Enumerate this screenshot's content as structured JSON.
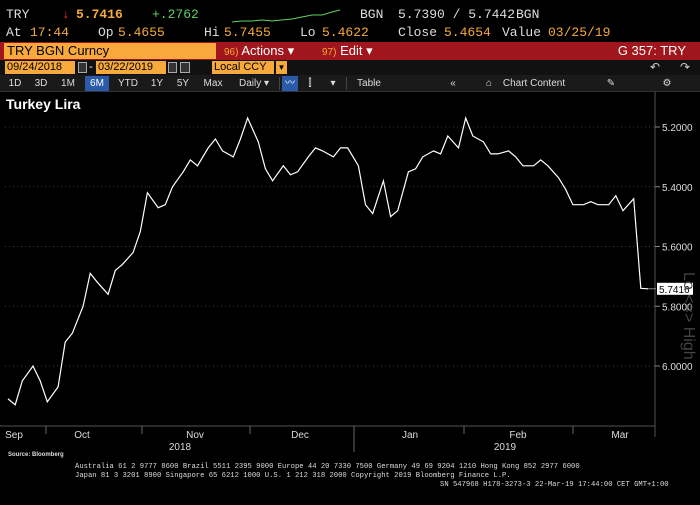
{
  "ticker": {
    "symbol": "TRY",
    "change_arrow": "↓",
    "last": "5.7416",
    "change": "+.2762",
    "source": "BGN",
    "bid_ask": "5.7390 / 5.7442",
    "source2": "BGN",
    "at_label": "At",
    "at_time": "17:44",
    "op_label": "Op",
    "op_value": "5.4655",
    "hi_label": "Hi",
    "hi_value": "5.7455",
    "lo_label": "Lo",
    "lo_value": "5.4622",
    "close_label": "Close",
    "close_value": "5.4654",
    "value_label": "Value",
    "value_date": "03/25/19"
  },
  "titlebar": {
    "security": "TRY BGN Curncy",
    "actions_num": "96)",
    "actions_label": "Actions ▾",
    "edit_num": "97)",
    "edit_label": "Edit ▾",
    "function_label": "G 357: TRY"
  },
  "daterow": {
    "start_date": "09/24/2018",
    "end_date": "03/22/2019",
    "currency": "Local CCY"
  },
  "toolbar": {
    "periods": [
      "1D",
      "3D",
      "1M",
      "6M",
      "YTD",
      "1Y",
      "5Y",
      "Max"
    ],
    "active_period": "6M",
    "frequency": "Daily ▾",
    "table_label": "Table",
    "chart_content_label": "Chart Content"
  },
  "chart_data": {
    "type": "line",
    "title": "Turkey Lira",
    "y_axis": {
      "ticks": [
        "5.2000",
        "5.4000",
        "5.6000",
        "5.8000",
        "6.0000"
      ],
      "min": 5.15,
      "max": 6.16,
      "inverted": true
    },
    "last_value_label": "5.7416",
    "x_months": [
      "Sep",
      "Oct",
      "Nov",
      "Dec",
      "Jan",
      "Feb",
      "Mar"
    ],
    "x_years": [
      "2018",
      "2019"
    ],
    "series": [
      {
        "x": [
          "2018-09-24",
          "2018-09-26",
          "2018-09-28",
          "2018-10-01",
          "2018-10-03",
          "2018-10-05",
          "2018-10-08",
          "2018-10-10",
          "2018-10-12",
          "2018-10-15",
          "2018-10-17",
          "2018-10-19",
          "2018-10-22",
          "2018-10-24",
          "2018-10-26",
          "2018-10-29",
          "2018-10-31",
          "2018-11-02",
          "2018-11-05",
          "2018-11-07",
          "2018-11-09",
          "2018-11-12",
          "2018-11-14",
          "2018-11-16",
          "2018-11-19",
          "2018-11-21",
          "2018-11-23",
          "2018-11-26",
          "2018-11-28",
          "2018-11-30",
          "2018-12-03",
          "2018-12-05",
          "2018-12-07",
          "2018-12-10",
          "2018-12-12",
          "2018-12-14",
          "2018-12-17",
          "2018-12-19",
          "2018-12-21",
          "2018-12-24",
          "2018-12-26",
          "2018-12-28",
          "2018-12-31",
          "2019-01-02",
          "2019-01-04",
          "2019-01-07",
          "2019-01-09",
          "2019-01-11",
          "2019-01-14",
          "2019-01-16",
          "2019-01-18",
          "2019-01-21",
          "2019-01-23",
          "2019-01-25",
          "2019-01-28",
          "2019-01-30",
          "2019-02-01",
          "2019-02-04",
          "2019-02-06",
          "2019-02-08",
          "2019-02-11",
          "2019-02-13",
          "2019-02-15",
          "2019-02-18",
          "2019-02-20",
          "2019-02-22",
          "2019-02-25",
          "2019-02-27",
          "2019-03-01",
          "2019-03-04",
          "2019-03-06",
          "2019-03-08",
          "2019-03-11",
          "2019-03-13",
          "2019-03-15",
          "2019-03-18",
          "2019-03-20",
          "2019-03-22"
        ],
        "values": [
          6.11,
          6.13,
          6.05,
          6.0,
          6.05,
          6.12,
          6.07,
          5.92,
          5.89,
          5.8,
          5.69,
          5.72,
          5.76,
          5.68,
          5.66,
          5.62,
          5.55,
          5.42,
          5.47,
          5.46,
          5.4,
          5.35,
          5.31,
          5.33,
          5.27,
          5.24,
          5.28,
          5.3,
          5.24,
          5.17,
          5.25,
          5.34,
          5.38,
          5.33,
          5.36,
          5.35,
          5.3,
          5.27,
          5.28,
          5.3,
          5.27,
          5.27,
          5.33,
          5.46,
          5.49,
          5.38,
          5.5,
          5.48,
          5.35,
          5.34,
          5.3,
          5.28,
          5.29,
          5.23,
          5.27,
          5.17,
          5.23,
          5.25,
          5.29,
          5.29,
          5.28,
          5.3,
          5.33,
          5.33,
          5.31,
          5.33,
          5.37,
          5.41,
          5.46,
          5.46,
          5.45,
          5.46,
          5.46,
          5.43,
          5.48,
          5.44,
          5.74,
          5.7416
        ]
      }
    ]
  },
  "footer": {
    "source": "Source: Bloomberg",
    "line1": "Australia 61 2 9777 8600 Brazil 5511 2395 9000 Europe 44 20 7330 7500 Germany 49 69 9204 1210 Hong Kong 852 2977 6000",
    "line2": "Japan 81 3 3201 8900        Singapore 65 6212 1000        U.S. 1 212 318 2000                Copyright 2019 Bloomberg Finance L.P.",
    "line3": "SN 547968 H178-3273-3 22-Mar-19 17:44:00 CET  GMT+1:00"
  }
}
